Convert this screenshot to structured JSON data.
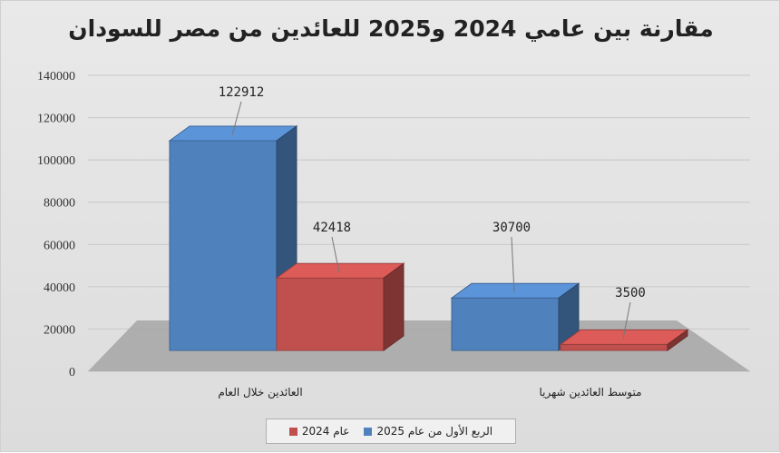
{
  "chart_data": {
    "type": "bar",
    "title": "مقارنة بين عامي 2024 و2025 للعائدين من مصر للسودان",
    "categories": [
      "العائدين خلال العام",
      "متوسط العائدين شهريا"
    ],
    "series": [
      {
        "name": "الربع الأول من عام 2025",
        "values": [
          122912,
          30700
        ],
        "color": "#4f81bd"
      },
      {
        "name": "عام 2024",
        "values": [
          42418,
          3500
        ],
        "color": "#c0504d"
      }
    ],
    "data_labels": [
      [
        "122912",
        "30700"
      ],
      [
        "42418",
        "3500"
      ]
    ],
    "yticks": [
      "0",
      "20000",
      "40000",
      "60000",
      "80000",
      "100000",
      "120000",
      "140000"
    ],
    "ylim": [
      0,
      140000
    ],
    "grid": true,
    "style": "3d-clustered-column",
    "legend_position": "bottom",
    "background": "#e3e3e3"
  }
}
